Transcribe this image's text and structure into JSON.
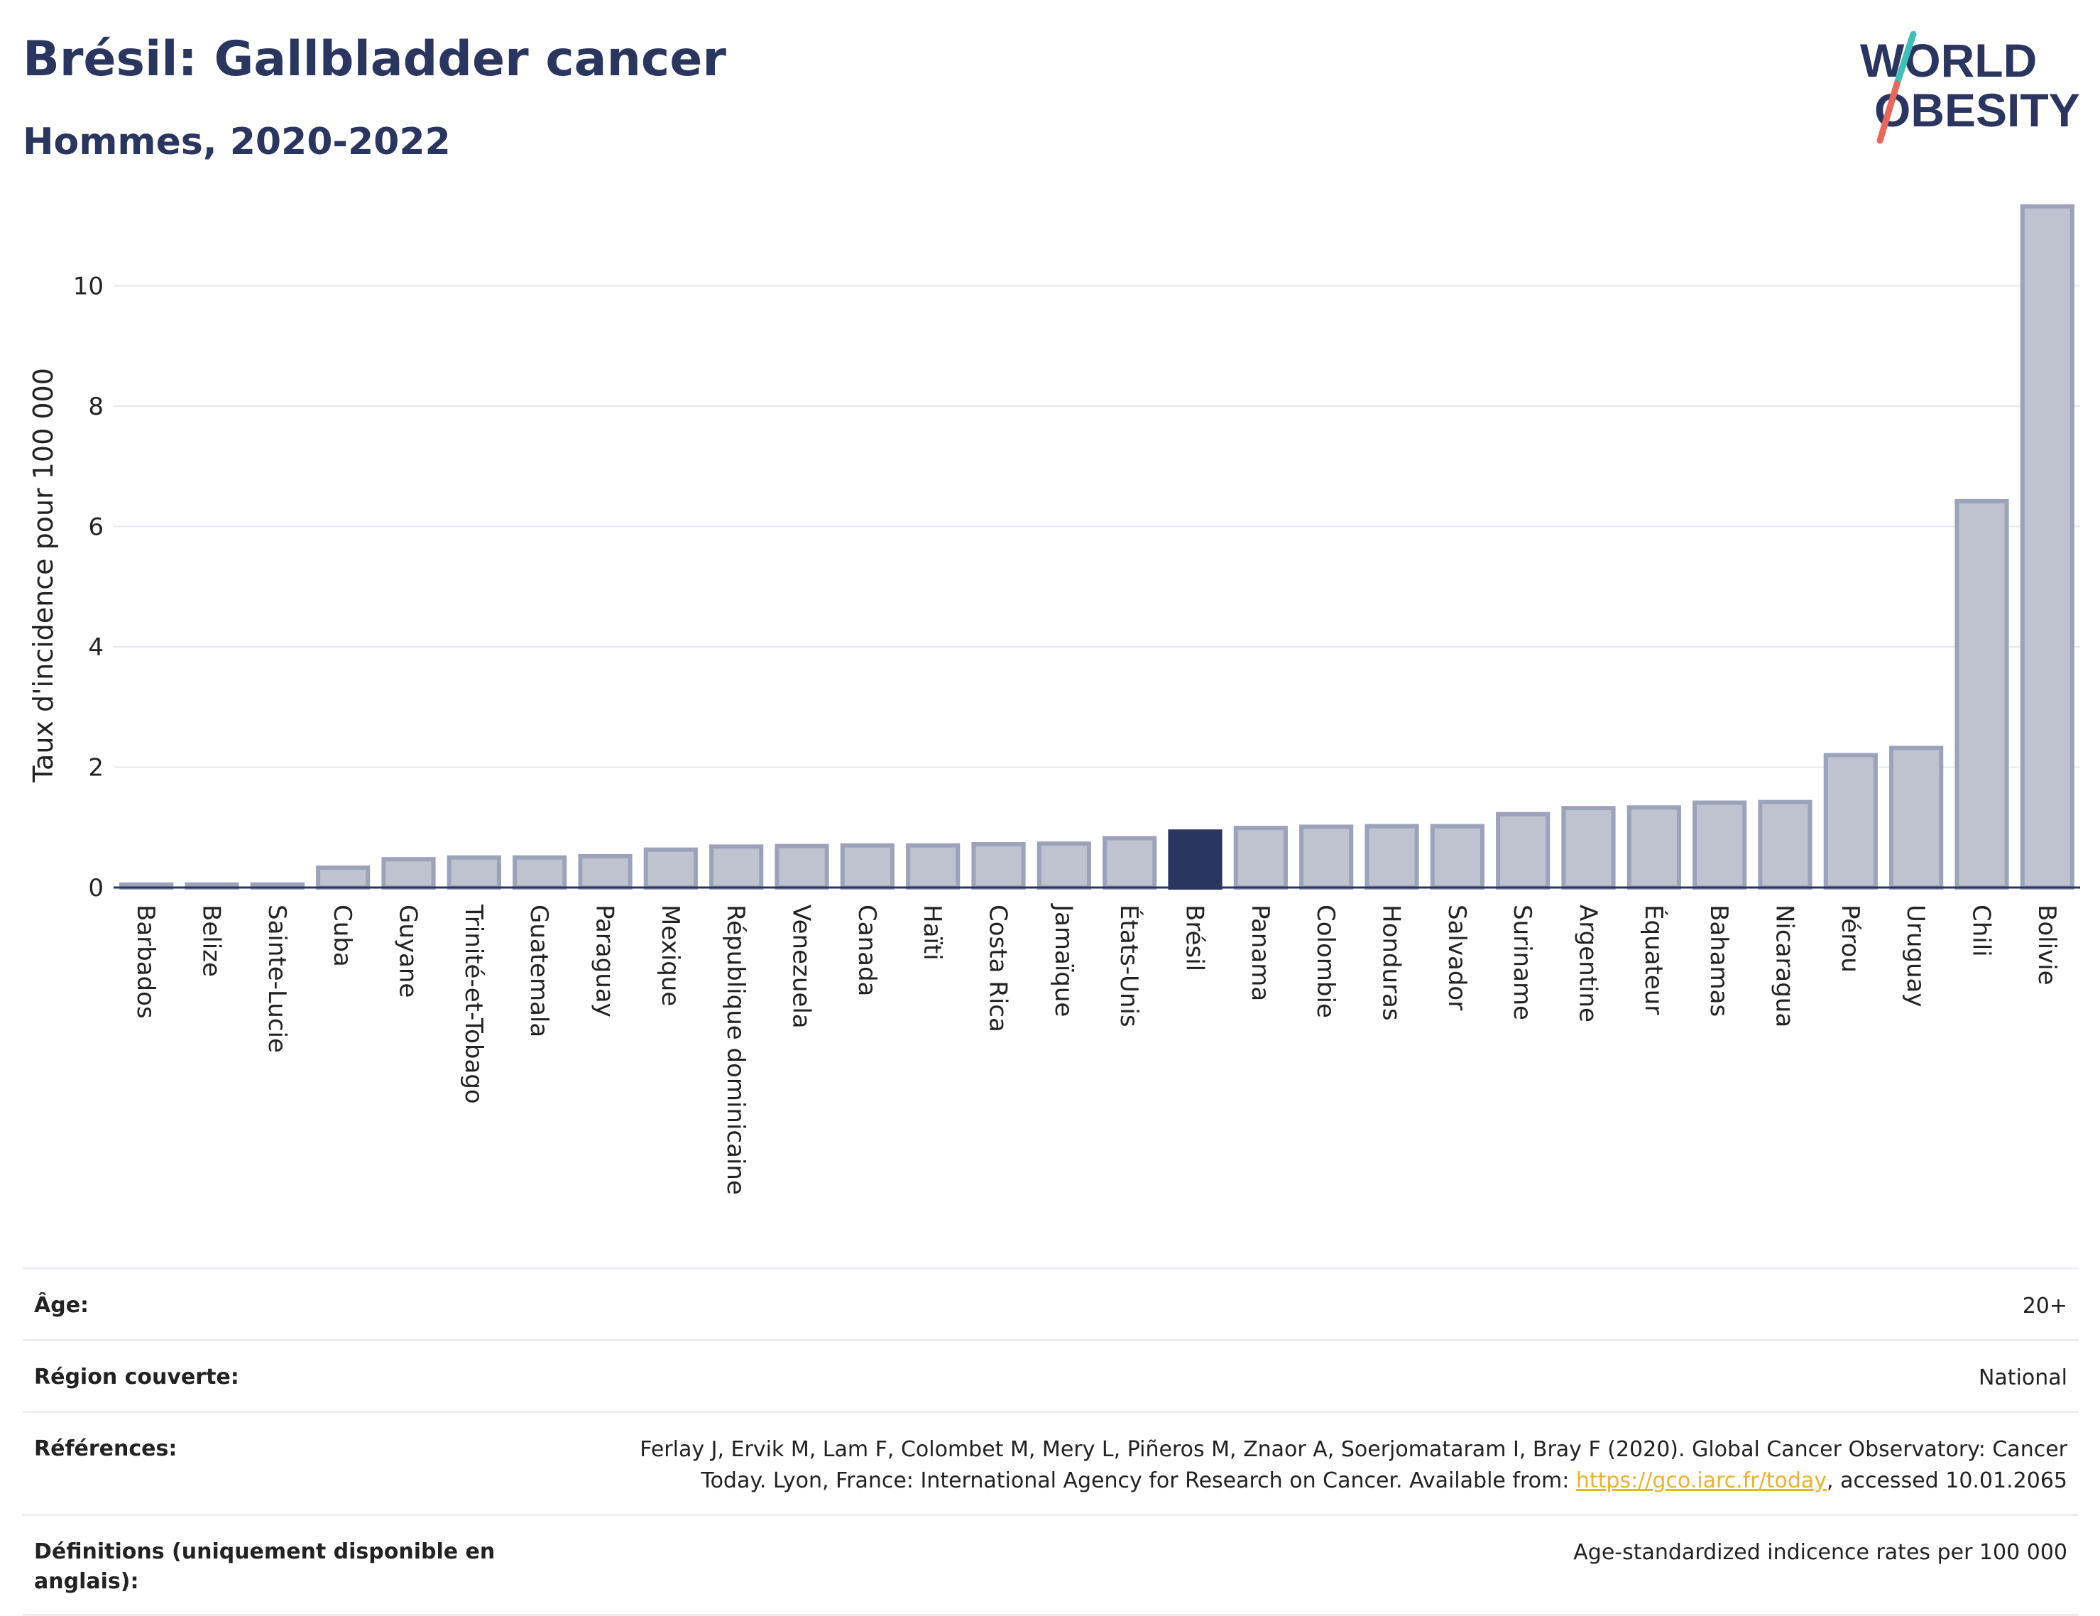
{
  "header": {
    "title": "Brésil: Gallbladder cancer",
    "subtitle": "Hommes, 2020-2022"
  },
  "logo": {
    "line1": "WORLD",
    "line2": "OBESITY"
  },
  "colors": {
    "highlight": "#2a3560",
    "bar": "#bfc3d0",
    "bar_border": "#9ba2ba",
    "title": "#2a3560",
    "link": "#e8b42a",
    "accent_teal": "#3fbfb8",
    "accent_red": "#e8665a"
  },
  "chart_data": {
    "type": "bar",
    "ylabel": "Taux d'incidence pour 100 000",
    "ylim": [
      0,
      11.8
    ],
    "yticks": [
      0,
      2,
      4,
      6,
      8,
      10
    ],
    "grid": true,
    "highlight": "Brésil",
    "categories": [
      "Barbados",
      "Belize",
      "Sainte-Lucie",
      "Cuba",
      "Guyane",
      "Trinité-et-Tobago",
      "Guatemala",
      "Paraguay",
      "Mexique",
      "République dominicaine",
      "Venezuela",
      "Canada",
      "Haïti",
      "Costa Rica",
      "Jamaïque",
      "États-Unis",
      "Brésil",
      "Panama",
      "Colombie",
      "Honduras",
      "Salvador",
      "Suriname",
      "Argentine",
      "Équateur",
      "Bahamas",
      "Nicaragua",
      "Pérou",
      "Uruguay",
      "Chili",
      "Bolivie"
    ],
    "values": [
      0.05,
      0.05,
      0.05,
      0.33,
      0.47,
      0.5,
      0.5,
      0.52,
      0.63,
      0.68,
      0.69,
      0.7,
      0.7,
      0.72,
      0.73,
      0.82,
      0.93,
      0.99,
      1.01,
      1.02,
      1.02,
      1.22,
      1.32,
      1.33,
      1.41,
      1.42,
      2.2,
      2.32,
      6.42,
      11.32
    ]
  },
  "meta": {
    "age_label": "Âge:",
    "age_value": "20+",
    "region_label": "Région couverte:",
    "region_value": "National",
    "refs_label": "Références:",
    "refs_line1": "Ferlay J, Ervik M, Lam F, Colombet M, Mery L, Piñeros M, Znaor A, Soerjomataram I, Bray F (2020). Global Cancer Observatory: Cancer",
    "refs_line2_pre": "Today. Lyon, France: International Agency for Research on Cancer. Available from: ",
    "refs_link": "https://gco.iarc.fr/today",
    "refs_line2_post": ", accessed 10.01.2065",
    "defs_label": "Définitions (uniquement disponible en anglais):",
    "defs_value": "Age-standardized indicence rates per 100 000"
  }
}
